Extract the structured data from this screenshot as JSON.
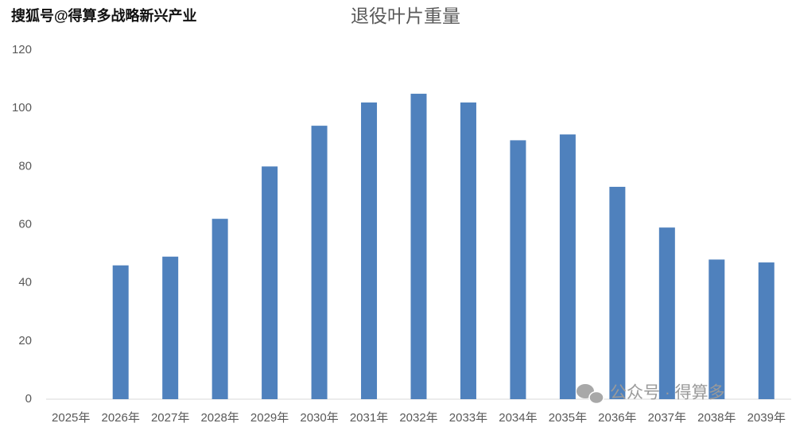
{
  "chart_data": {
    "type": "bar",
    "title": "退役叶片重量",
    "categories": [
      "2025年",
      "2026年",
      "2027年",
      "2028年",
      "2029年",
      "2030年",
      "2031年",
      "2032年",
      "2033年",
      "2034年",
      "2035年",
      "2036年",
      "2037年",
      "2038年",
      "2039年"
    ],
    "values": [
      null,
      46,
      49,
      62,
      80,
      94,
      102,
      105,
      102,
      89,
      91,
      73,
      59,
      48,
      47
    ],
    "color": "#4f81bd",
    "ylim": [
      0,
      120
    ],
    "yticks": [
      0,
      20,
      40,
      60,
      80,
      100,
      120
    ],
    "grid": false,
    "watermarks": [
      "搜狐号@得算多战略新兴产业",
      "公众号 · 得算多"
    ]
  }
}
